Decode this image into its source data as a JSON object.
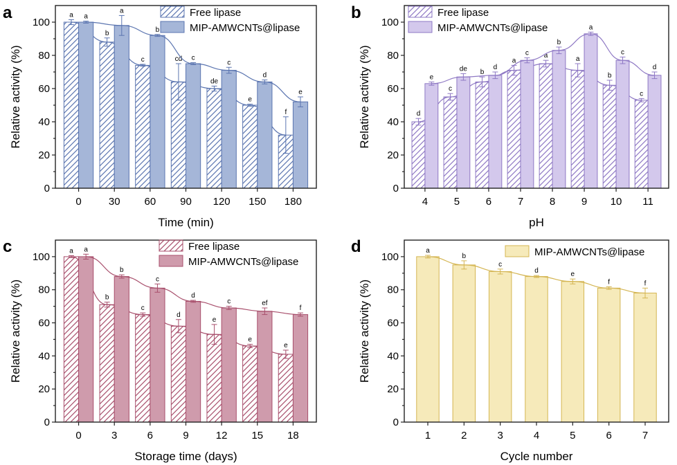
{
  "chart_data": [
    {
      "panel": "a",
      "type": "bar",
      "xlabel": "Time (min)",
      "ylabel": "Relative activity (%)",
      "ylim": [
        0,
        110
      ],
      "yticks": [
        "0",
        "20",
        "40",
        "60",
        "80",
        "100"
      ],
      "categories": [
        "0",
        "30",
        "60",
        "90",
        "120",
        "150",
        "180"
      ],
      "color": "#5b75b0",
      "fill": "#a5b6d8",
      "legend_position": "top-right",
      "series": [
        {
          "name": "Free lipase",
          "style": "hatched",
          "values": [
            100,
            88,
            74,
            64,
            60,
            50,
            32
          ],
          "errors": [
            1.5,
            2.5,
            0.6,
            11,
            1.5,
            0.6,
            11
          ],
          "letters": [
            "a",
            "b",
            "c",
            "cd",
            "de",
            "e",
            "f"
          ]
        },
        {
          "name": "MIP-AMWCNTs@lipase",
          "style": "solid",
          "values": [
            100,
            98,
            92,
            75,
            71,
            64,
            52
          ],
          "errors": [
            0.6,
            6,
            0.6,
            0.6,
            1.8,
            1.2,
            3
          ],
          "letters": [
            "a",
            "a",
            "b",
            "c",
            "c",
            "d",
            "e"
          ]
        }
      ]
    },
    {
      "panel": "b",
      "type": "bar",
      "xlabel": "pH",
      "ylabel": "Relative activity (%)",
      "ylim": [
        0,
        110
      ],
      "yticks": [
        "0",
        "20",
        "40",
        "60",
        "80",
        "100"
      ],
      "categories": [
        "4",
        "5",
        "6",
        "7",
        "8",
        "9",
        "10",
        "11"
      ],
      "color": "#8e78c4",
      "fill": "#d3c8ec",
      "legend_position": "top-left",
      "series": [
        {
          "name": "Free lipase",
          "style": "hatched",
          "values": [
            40,
            55,
            64,
            71,
            75,
            71,
            62,
            53
          ],
          "errors": [
            2,
            2,
            3,
            3,
            2,
            4,
            3,
            1
          ],
          "letters": [
            "d",
            "c",
            "b",
            "a",
            "a",
            "a",
            "b",
            "c"
          ]
        },
        {
          "name": "MIP-AMWCNTs@lipase",
          "style": "solid",
          "values": [
            63,
            67,
            68,
            77,
            83,
            93,
            77,
            68
          ],
          "errors": [
            1,
            2,
            2,
            1.5,
            2,
            1,
            2,
            2
          ],
          "letters": [
            "e",
            "de",
            "d",
            "c",
            "b",
            "a",
            "c",
            "d"
          ]
        }
      ]
    },
    {
      "panel": "c",
      "type": "bar",
      "xlabel": "Storage time (days)",
      "ylabel": "Relative activity (%)",
      "ylim": [
        0,
        110
      ],
      "yticks": [
        "0",
        "20",
        "40",
        "60",
        "80",
        "100"
      ],
      "categories": [
        "0",
        "3",
        "6",
        "9",
        "12",
        "15",
        "18"
      ],
      "color": "#a84f6c",
      "fill": "#cf9bac",
      "legend_position": "top-right",
      "series": [
        {
          "name": "Free lipase",
          "style": "hatched",
          "values": [
            100,
            71,
            65,
            58,
            53,
            46,
            41
          ],
          "errors": [
            0.6,
            1.5,
            1,
            4,
            6,
            1,
            2.5
          ],
          "letters": [
            "a",
            "b",
            "c",
            "d",
            "e",
            "e",
            "e"
          ]
        },
        {
          "name": "MIP-AMWCNTs@lipase",
          "style": "solid",
          "values": [
            100,
            88,
            81,
            73,
            69,
            67,
            65
          ],
          "errors": [
            1.5,
            1,
            2.5,
            0.6,
            1,
            2,
            1
          ],
          "letters": [
            "a",
            "b",
            "c",
            "d",
            "c",
            "ef",
            "f"
          ]
        }
      ]
    },
    {
      "panel": "d",
      "type": "bar",
      "xlabel": "Cycle number",
      "ylabel": "Relative activity (%)",
      "ylim": [
        0,
        110
      ],
      "yticks": [
        "0",
        "20",
        "40",
        "60",
        "80",
        "100"
      ],
      "categories": [
        "1",
        "2",
        "3",
        "4",
        "5",
        "6",
        "7"
      ],
      "color": "#d4b552",
      "fill": "#f6eaba",
      "legend_position": "top-right",
      "series": [
        {
          "name": "MIP-AMWCNTs@lipase",
          "style": "solid",
          "values": [
            100,
            95,
            91,
            88,
            85,
            81,
            78
          ],
          "errors": [
            0.8,
            2.5,
            1.5,
            0.6,
            1.5,
            0.8,
            3
          ],
          "letters": [
            "a",
            "b",
            "c",
            "d",
            "e",
            "f",
            "f"
          ]
        }
      ]
    }
  ]
}
